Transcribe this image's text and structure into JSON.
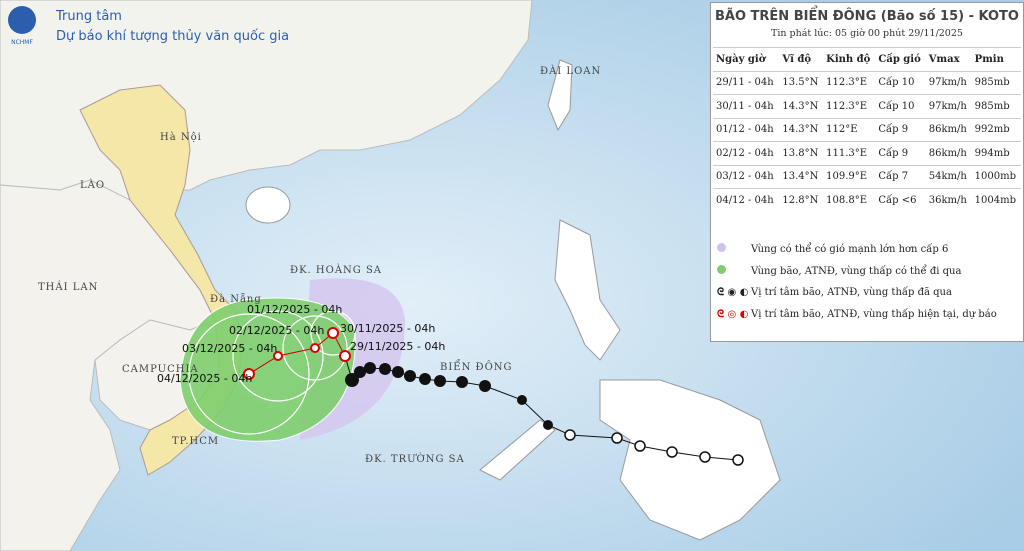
{
  "header": {
    "org": "Trung tâm",
    "subtitle": "Dự báo khí tượng thủy văn quốc gia",
    "logo": "NCHMF"
  },
  "panel": {
    "title": "BÃO TRÊN BIỂN ĐÔNG (Bão số 15) - KOTO",
    "issued": "Tin phát lúc: 05 giờ 00 phút 29/11/2025",
    "table": {
      "columns": [
        "Ngày giờ",
        "Vĩ độ",
        "Kinh độ",
        "Cấp gió",
        "Vmax",
        "Pmin"
      ],
      "rows": [
        [
          "29/11 - 04h",
          "13.5°N",
          "112.3°E",
          "Cấp 10",
          "97km/h",
          "985mb"
        ],
        [
          "30/11 - 04h",
          "14.3°N",
          "112.3°E",
          "Cấp 10",
          "97km/h",
          "985mb"
        ],
        [
          "01/12 - 04h",
          "14.3°N",
          "112°E",
          "Cấp 9",
          "86km/h",
          "992mb"
        ],
        [
          "02/12 - 04h",
          "13.8°N",
          "111.3°E",
          "Cấp 9",
          "86km/h",
          "994mb"
        ],
        [
          "03/12 - 04h",
          "13.4°N",
          "109.9°E",
          "Cấp 7",
          "54km/h",
          "1000mb"
        ],
        [
          "04/12 - 04h",
          "12.8°N",
          "108.8°E",
          "Cấp <6",
          "36km/h",
          "1004mb"
        ]
      ]
    },
    "legend": [
      "Vùng có thể có gió mạnh lớn hơn cấp 6",
      "Vùng bão, ATNĐ, vùng thấp có thể đi qua",
      "Vị trí tâm bão, ATNĐ, vùng thấp đã qua",
      "Vị trí tâm bão, ATNĐ, vùng thấp hiện tại, dự báo"
    ]
  },
  "map": {
    "places": [
      "Hà Nội",
      "LÀO",
      "THÁI LAN",
      "CAMPUCHIA",
      "TP.HCM",
      "Đà Nẵng",
      "ĐK. HOÀNG SA",
      "ĐK. TRƯỜNG SA",
      "BIỂN ĐÔNG",
      "ĐÀI LOAN"
    ],
    "track_labels": [
      "29/11/2025 - 04h",
      "30/11/2025 - 04h",
      "01/12/2025 - 04h",
      "02/12/2025 - 04h",
      "03/12/2025 - 04h",
      "04/12/2025 - 04h"
    ]
  }
}
